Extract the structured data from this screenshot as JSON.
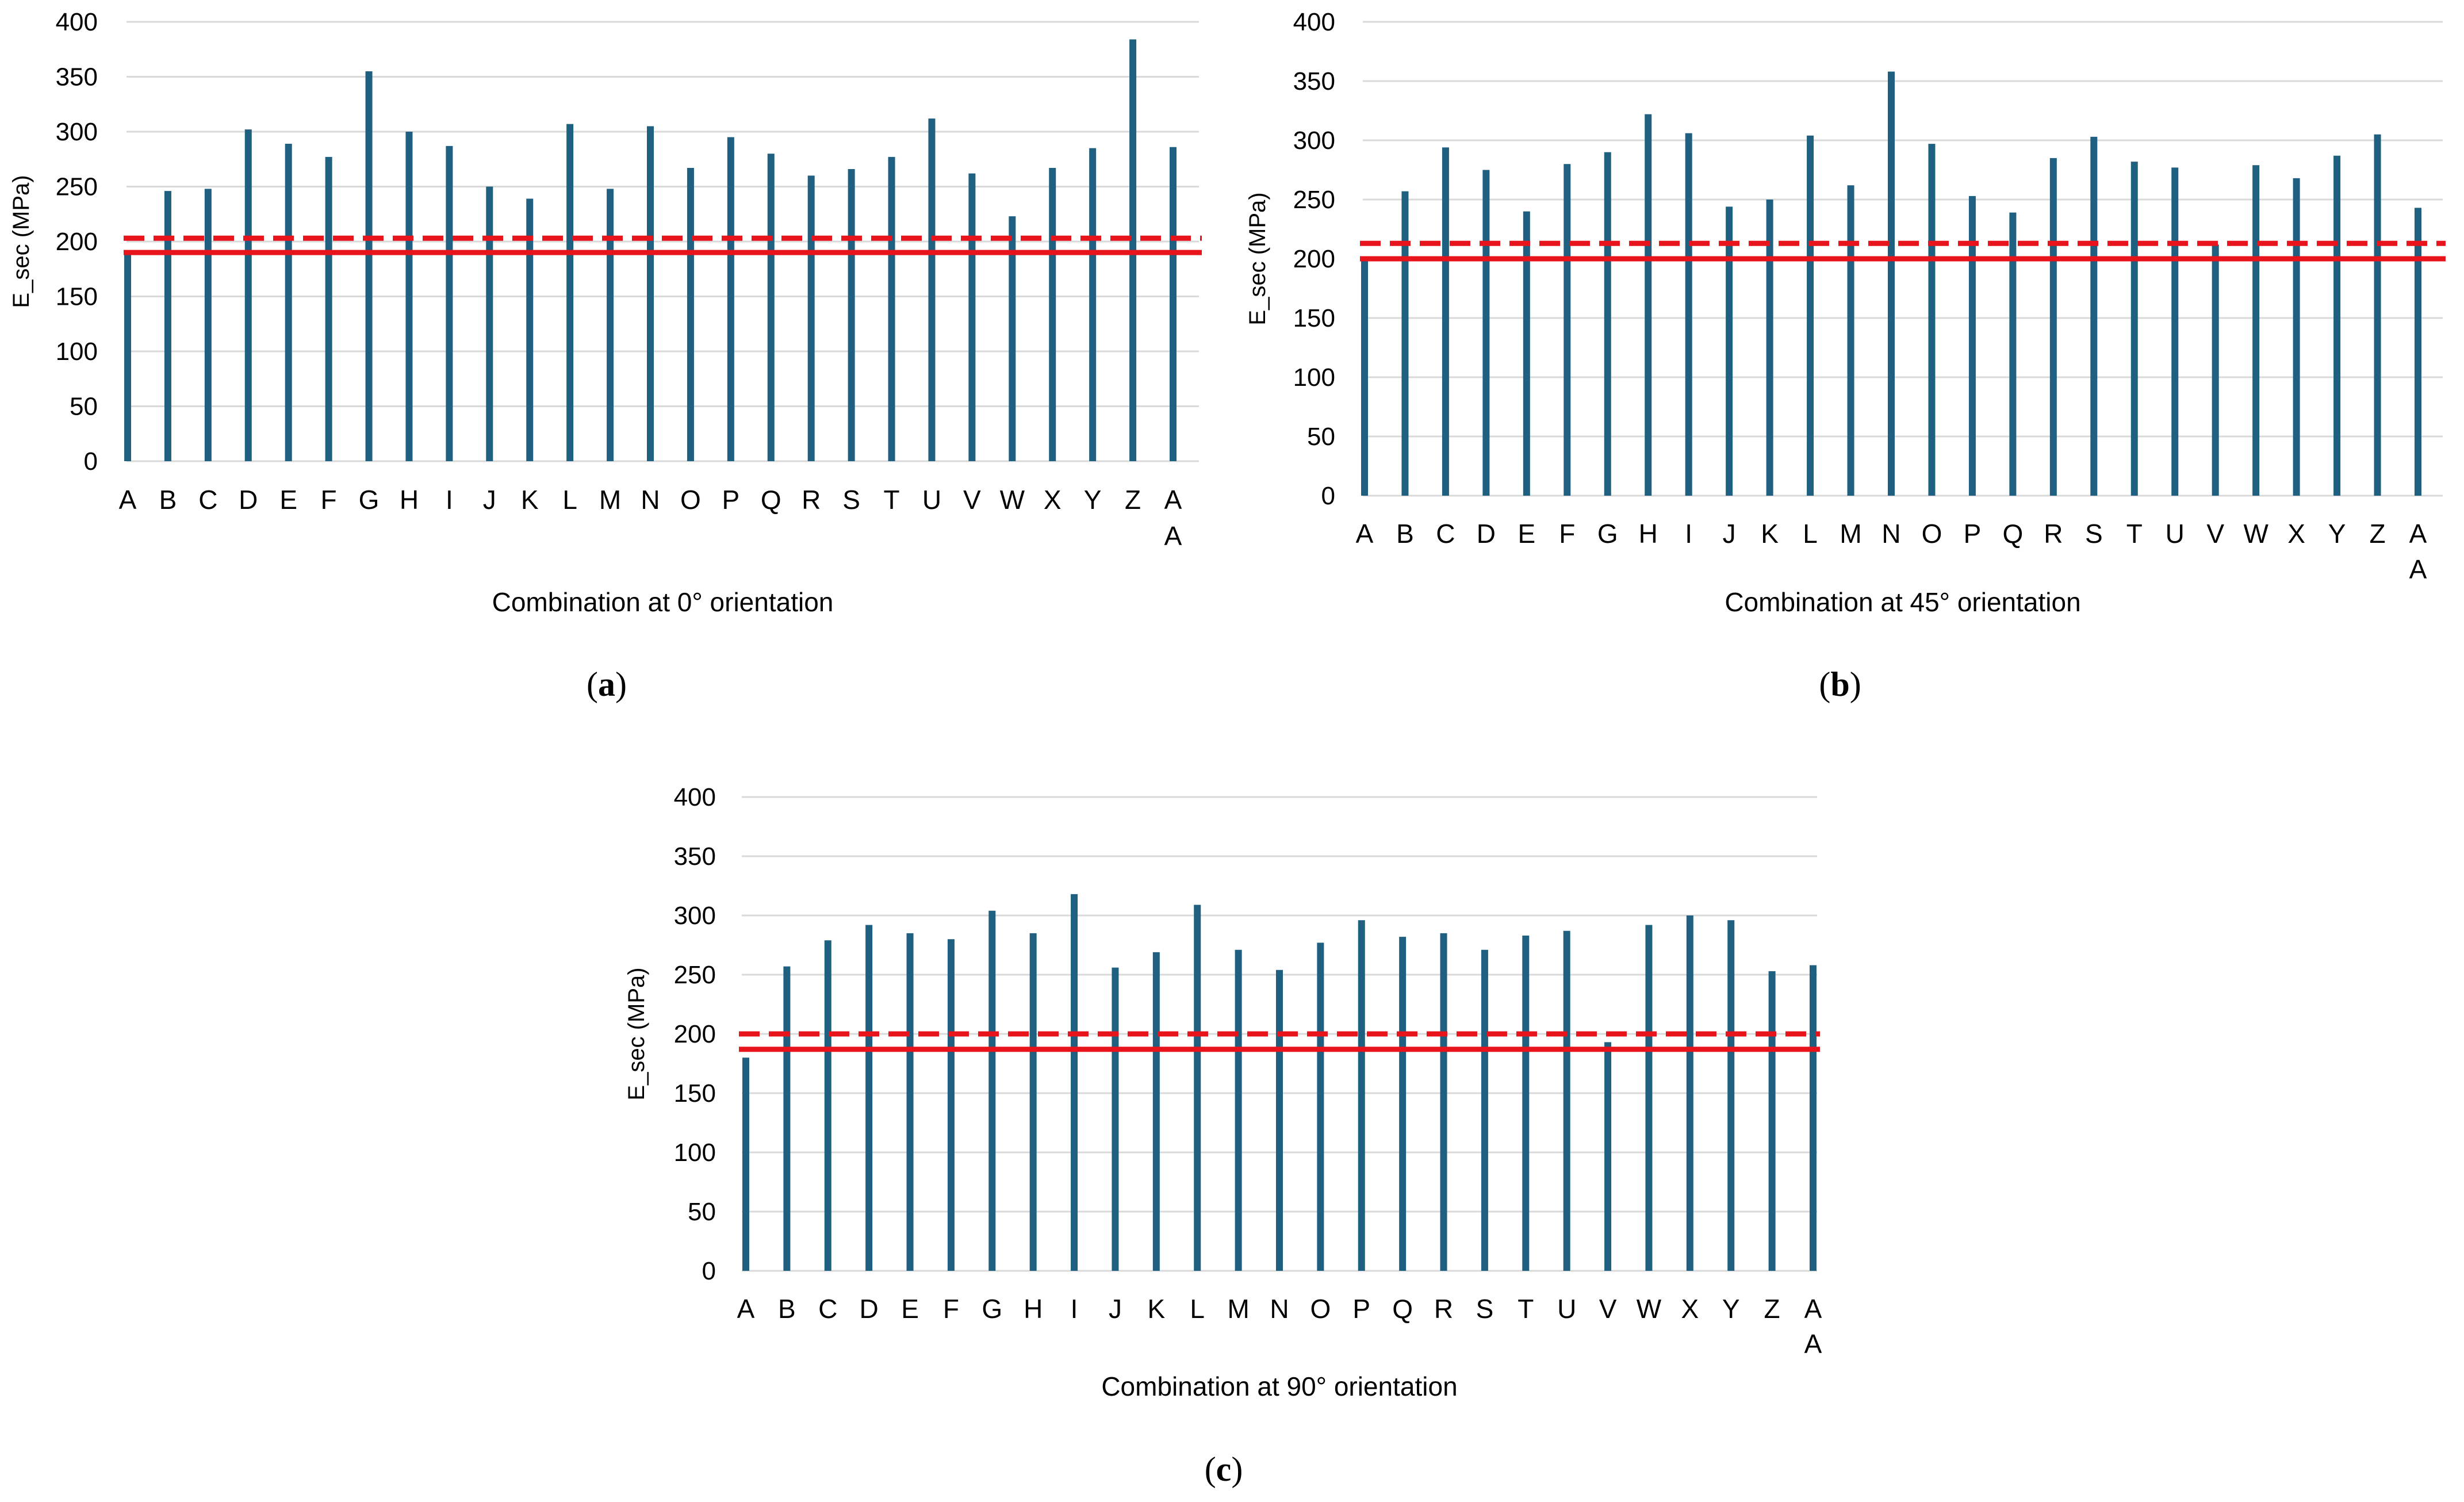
{
  "chart_data": [
    {
      "type": "bar",
      "panel_label": "a",
      "categories": [
        "A",
        "B",
        "C",
        "D",
        "E",
        "F",
        "G",
        "H",
        "I",
        "J",
        "K",
        "L",
        "M",
        "N",
        "O",
        "P",
        "Q",
        "R",
        "S",
        "T",
        "U",
        "V",
        "W",
        "X",
        "Y",
        "Z",
        "AA"
      ],
      "values": [
        190,
        246,
        248,
        302,
        289,
        277,
        355,
        300,
        287,
        250,
        239,
        307,
        248,
        305,
        267,
        295,
        280,
        260,
        266,
        277,
        312,
        262,
        223,
        267,
        285,
        384,
        286
      ],
      "reference_lines": [
        {
          "style": "solid",
          "value": 190
        },
        {
          "style": "dashed",
          "value": 203
        }
      ],
      "xlabel": "Combination at 0° orientation",
      "ylabel": "E_sec (MPa)",
      "ylim": [
        0,
        400
      ],
      "yticks": [
        0,
        50,
        100,
        150,
        200,
        250,
        300,
        350,
        400
      ],
      "grid": true,
      "colors": {
        "bar": "#1f5f7f",
        "reference": "#e8141c",
        "grid": "#d9d9d9"
      }
    },
    {
      "type": "bar",
      "panel_label": "b",
      "categories": [
        "A",
        "B",
        "C",
        "D",
        "E",
        "F",
        "G",
        "H",
        "I",
        "J",
        "K",
        "L",
        "M",
        "N",
        "O",
        "P",
        "Q",
        "R",
        "S",
        "T",
        "U",
        "V",
        "W",
        "X",
        "Y",
        "Z",
        "AA"
      ],
      "values": [
        200,
        257,
        294,
        275,
        240,
        280,
        290,
        322,
        306,
        244,
        250,
        304,
        262,
        358,
        297,
        253,
        239,
        285,
        303,
        282,
        277,
        212,
        279,
        268,
        287,
        305,
        243
      ],
      "reference_lines": [
        {
          "style": "solid",
          "value": 200
        },
        {
          "style": "dashed",
          "value": 213
        }
      ],
      "xlabel": "Combination at 45° orientation",
      "ylabel": "E_sec (MPa)",
      "ylim": [
        0,
        400
      ],
      "yticks": [
        0,
        50,
        100,
        150,
        200,
        250,
        300,
        350,
        400
      ],
      "grid": true,
      "colors": {
        "bar": "#1f5f7f",
        "reference": "#e8141c",
        "grid": "#d9d9d9"
      }
    },
    {
      "type": "bar",
      "panel_label": "c",
      "categories": [
        "A",
        "B",
        "C",
        "D",
        "E",
        "F",
        "G",
        "H",
        "I",
        "J",
        "K",
        "L",
        "M",
        "N",
        "O",
        "P",
        "Q",
        "R",
        "S",
        "T",
        "U",
        "V",
        "W",
        "X",
        "Y",
        "Z",
        "AA"
      ],
      "values": [
        180,
        257,
        279,
        292,
        285,
        280,
        304,
        285,
        318,
        256,
        269,
        309,
        271,
        254,
        277,
        296,
        282,
        285,
        271,
        283,
        287,
        193,
        292,
        300,
        296,
        253,
        258
      ],
      "reference_lines": [
        {
          "style": "solid",
          "value": 187
        },
        {
          "style": "dashed",
          "value": 200
        }
      ],
      "xlabel": "Combination at 90° orientation",
      "ylabel": "E_sec (MPa)",
      "ylim": [
        0,
        400
      ],
      "yticks": [
        0,
        50,
        100,
        150,
        200,
        250,
        300,
        350,
        400
      ],
      "grid": true,
      "colors": {
        "bar": "#1f5f7f",
        "reference": "#e8141c",
        "grid": "#d9d9d9"
      }
    }
  ]
}
